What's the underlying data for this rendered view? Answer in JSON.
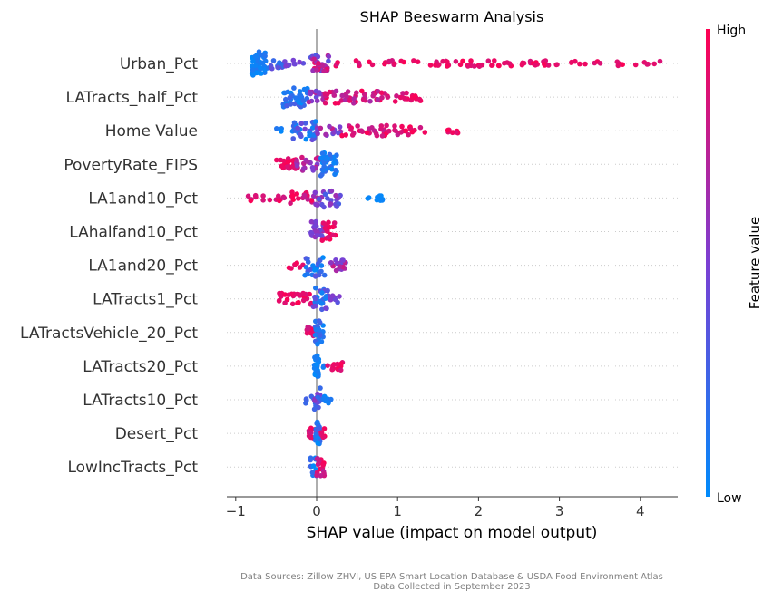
{
  "chart_data": {
    "type": "scatter",
    "subtype": "shap-beeswarm",
    "title": "SHAP Beeswarm Analysis",
    "xlabel": "SHAP value (impact on model output)",
    "xticks": [
      -1,
      0,
      1,
      2,
      3,
      4
    ],
    "xtick_labels": [
      "−1",
      "0",
      "1",
      "2",
      "3",
      "4"
    ],
    "xlim": [
      -1.1,
      4.5
    ],
    "colorbar": {
      "title": "Feature value",
      "high_label": "High",
      "low_label": "Low",
      "low_color": "#008bfb",
      "mid_color": "#7b3fd3",
      "high_color": "#ff0052"
    },
    "zero_line_color": "#999999",
    "features": [
      {
        "name": "Urban_Pct",
        "groups": [
          {
            "range": [
              -0.8,
              -0.62
            ],
            "n": 45,
            "spread": 1.0,
            "color": [
              0.0,
              0.15
            ]
          },
          {
            "range": [
              -0.62,
              -0.4
            ],
            "n": 12,
            "spread": 0.45,
            "color": [
              0.1,
              0.4
            ]
          },
          {
            "range": [
              -0.4,
              -0.15
            ],
            "n": 10,
            "spread": 0.4,
            "color": [
              0.35,
              0.55
            ]
          },
          {
            "range": [
              -0.08,
              0.15
            ],
            "n": 30,
            "spread": 0.7,
            "color": [
              0.3,
              0.9
            ]
          },
          {
            "range": [
              0.15,
              1.0
            ],
            "n": 16,
            "spread": 0.25,
            "color": [
              0.8,
              1.0
            ]
          },
          {
            "range": [
              1.0,
              2.0
            ],
            "n": 22,
            "spread": 0.25,
            "color": [
              0.85,
              1.0
            ]
          },
          {
            "range": [
              2.0,
              3.0
            ],
            "n": 30,
            "spread": 0.25,
            "color": [
              0.85,
              1.0
            ]
          },
          {
            "range": [
              3.0,
              4.25
            ],
            "n": 18,
            "spread": 0.2,
            "color": [
              0.85,
              1.0
            ]
          }
        ]
      },
      {
        "name": "LATracts_half_Pct",
        "groups": [
          {
            "range": [
              -0.42,
              -0.1
            ],
            "n": 40,
            "spread": 0.85,
            "color": [
              0.0,
              0.3
            ]
          },
          {
            "range": [
              -0.1,
              0.1
            ],
            "n": 15,
            "spread": 0.5,
            "color": [
              0.4,
              0.8
            ]
          },
          {
            "range": [
              0.1,
              0.8
            ],
            "n": 40,
            "spread": 0.55,
            "color": [
              0.65,
              1.0
            ]
          },
          {
            "range": [
              0.8,
              1.3
            ],
            "n": 22,
            "spread": 0.4,
            "color": [
              0.8,
              1.0
            ]
          }
        ]
      },
      {
        "name": "Home Value",
        "groups": [
          {
            "range": [
              -0.5,
              -0.2
            ],
            "n": 8,
            "spread": 0.2,
            "color": [
              0.0,
              0.2
            ]
          },
          {
            "range": [
              -0.3,
              0.0
            ],
            "n": 30,
            "spread": 0.85,
            "color": [
              0.0,
              0.5
            ]
          },
          {
            "range": [
              0.0,
              0.3
            ],
            "n": 14,
            "spread": 0.4,
            "color": [
              0.4,
              0.8
            ]
          },
          {
            "range": [
              0.3,
              1.3
            ],
            "n": 45,
            "spread": 0.45,
            "color": [
              0.75,
              1.0
            ]
          },
          {
            "range": [
              1.3,
              1.85
            ],
            "n": 9,
            "spread": 0.2,
            "color": [
              0.85,
              1.0
            ]
          }
        ]
      },
      {
        "name": "PovertyRate_FIPS",
        "groups": [
          {
            "range": [
              -0.5,
              -0.25
            ],
            "n": 22,
            "spread": 0.5,
            "color": [
              0.85,
              1.0
            ]
          },
          {
            "range": [
              -0.25,
              0.05
            ],
            "n": 22,
            "spread": 0.6,
            "color": [
              0.5,
              0.85
            ]
          },
          {
            "range": [
              0.05,
              0.25
            ],
            "n": 38,
            "spread": 1.0,
            "color": [
              0.0,
              0.25
            ]
          }
        ]
      },
      {
        "name": "LA1and10_Pct",
        "groups": [
          {
            "range": [
              -0.9,
              -0.4
            ],
            "n": 14,
            "spread": 0.25,
            "color": [
              0.8,
              1.0
            ]
          },
          {
            "range": [
              -0.4,
              -0.05
            ],
            "n": 18,
            "spread": 0.5,
            "color": [
              0.75,
              1.0
            ]
          },
          {
            "range": [
              -0.05,
              0.3
            ],
            "n": 28,
            "spread": 0.85,
            "color": [
              0.2,
              0.7
            ]
          },
          {
            "range": [
              0.6,
              0.82
            ],
            "n": 10,
            "spread": 0.25,
            "color": [
              0.0,
              0.05
            ]
          }
        ]
      },
      {
        "name": "LAhalfand10_Pct",
        "groups": [
          {
            "range": [
              -0.07,
              0.0
            ],
            "n": 14,
            "spread": 0.9,
            "color": [
              0.3,
              0.6
            ]
          },
          {
            "range": [
              0.0,
              0.1
            ],
            "n": 16,
            "spread": 0.7,
            "color": [
              0.4,
              0.7
            ]
          },
          {
            "range": [
              0.05,
              0.25
            ],
            "n": 20,
            "spread": 0.85,
            "color": [
              0.85,
              1.0
            ]
          }
        ]
      },
      {
        "name": "LA1and20_Pct",
        "groups": [
          {
            "range": [
              -0.35,
              -0.15
            ],
            "n": 6,
            "spread": 0.3,
            "color": [
              0.85,
              1.0
            ]
          },
          {
            "range": [
              -0.15,
              0.1
            ],
            "n": 26,
            "spread": 1.0,
            "color": [
              0.0,
              0.4
            ]
          },
          {
            "range": [
              0.1,
              0.38
            ],
            "n": 18,
            "spread": 0.5,
            "color": [
              0.4,
              0.8
            ]
          }
        ]
      },
      {
        "name": "LATracts1_Pct",
        "groups": [
          {
            "range": [
              -0.5,
              -0.05
            ],
            "n": 30,
            "spread": 0.5,
            "color": [
              0.85,
              1.0
            ]
          },
          {
            "range": [
              -0.05,
              0.15
            ],
            "n": 26,
            "spread": 1.0,
            "color": [
              0.0,
              0.5
            ]
          },
          {
            "range": [
              0.15,
              0.3
            ],
            "n": 8,
            "spread": 0.3,
            "color": [
              0.3,
              0.6
            ]
          }
        ]
      },
      {
        "name": "LATractsVehicle_20_Pct",
        "groups": [
          {
            "range": [
              -0.12,
              0.0
            ],
            "n": 14,
            "spread": 0.5,
            "color": [
              0.7,
              1.0
            ]
          },
          {
            "range": [
              -0.02,
              0.08
            ],
            "n": 24,
            "spread": 1.0,
            "color": [
              0.0,
              0.35
            ]
          }
        ]
      },
      {
        "name": "LATracts20_Pct",
        "groups": [
          {
            "range": [
              -0.03,
              0.03
            ],
            "n": 26,
            "spread": 1.0,
            "color": [
              0.0,
              0.1
            ]
          },
          {
            "range": [
              0.05,
              0.1
            ],
            "n": 2,
            "spread": 0.1,
            "color": [
              0.0,
              0.1
            ]
          },
          {
            "range": [
              0.12,
              0.32
            ],
            "n": 14,
            "spread": 0.4,
            "color": [
              0.85,
              1.0
            ]
          }
        ]
      },
      {
        "name": "LATracts10_Pct",
        "groups": [
          {
            "range": [
              -0.15,
              0.0
            ],
            "n": 8,
            "spread": 0.3,
            "color": [
              0.0,
              0.3
            ]
          },
          {
            "range": [
              -0.03,
              0.05
            ],
            "n": 20,
            "spread": 1.0,
            "color": [
              0.2,
              0.6
            ]
          },
          {
            "range": [
              0.05,
              0.2
            ],
            "n": 8,
            "spread": 0.3,
            "color": [
              0.0,
              0.2
            ]
          }
        ]
      },
      {
        "name": "Desert_Pct",
        "groups": [
          {
            "range": [
              -0.1,
              0.0
            ],
            "n": 14,
            "spread": 0.5,
            "color": [
              0.8,
              1.0
            ]
          },
          {
            "range": [
              -0.02,
              0.05
            ],
            "n": 22,
            "spread": 1.0,
            "color": [
              0.0,
              0.3
            ]
          },
          {
            "range": [
              0.04,
              0.12
            ],
            "n": 8,
            "spread": 0.4,
            "color": [
              0.7,
              1.0
            ]
          }
        ]
      },
      {
        "name": "LowIncTracts_Pct",
        "groups": [
          {
            "range": [
              -0.08,
              0.0
            ],
            "n": 14,
            "spread": 0.8,
            "color": [
              0.0,
              0.35
            ]
          },
          {
            "range": [
              0.0,
              0.1
            ],
            "n": 18,
            "spread": 0.8,
            "color": [
              0.7,
              1.0
            ]
          }
        ]
      }
    ]
  },
  "footer": {
    "line1": "Data Sources: Zillow ZHVI, US EPA Smart Location Database & USDA Food Environment Atlas",
    "line2": "Data Collected in September 2023"
  }
}
